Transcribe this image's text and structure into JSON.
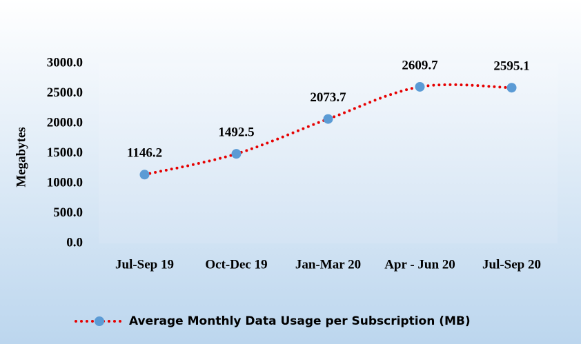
{
  "chart_data": {
    "type": "line",
    "y_label": "Megabytes",
    "categories": [
      "Jul-Sep 19",
      "Oct-Dec 19",
      "Jan-Mar 20",
      "Apr - Jun 20",
      "Jul-Sep 20"
    ],
    "series": [
      {
        "name": "Average Monthly Data Usage per Subscription (MB)",
        "color": "#e60000",
        "marker_color": "#5b9bd5",
        "values": [
          1146.2,
          1492.5,
          2073.7,
          2609.7,
          2595.1
        ]
      }
    ],
    "ylim": [
      0,
      3000
    ],
    "yticks": [
      {
        "value": 0,
        "label": "0.0"
      },
      {
        "value": 500,
        "label": "500.0"
      },
      {
        "value": 1000,
        "label": "1000.0"
      },
      {
        "value": 1500,
        "label": "1500.0"
      },
      {
        "value": 2000,
        "label": "2000.0"
      },
      {
        "value": 2500,
        "label": "2500.0"
      },
      {
        "value": 3000,
        "label": "3000.0"
      }
    ],
    "legend": "bottom",
    "smooth": true
  }
}
